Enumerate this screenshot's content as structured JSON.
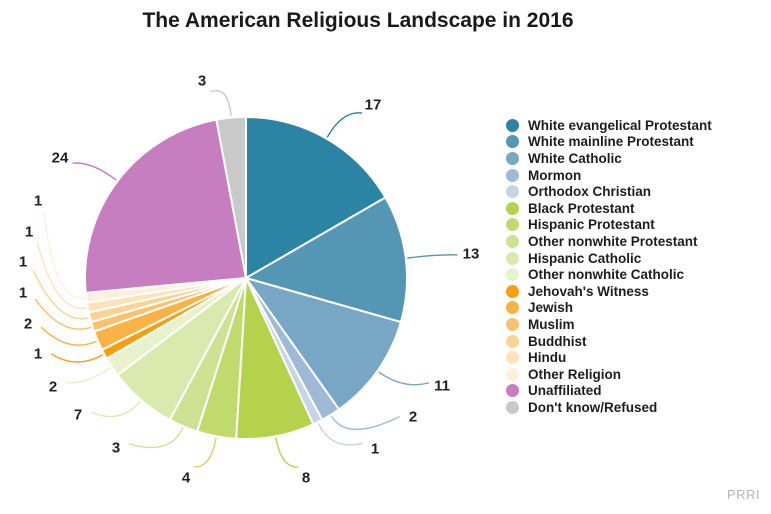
{
  "title": "The American Religious Landscape in 2016",
  "source": "PRRI",
  "chart_data": {
    "type": "pie",
    "title": "The American Religious Landscape in 2016",
    "unit": "percent",
    "total": 102,
    "legend_position": "right",
    "start_angle_deg": 0,
    "direction": "clockwise",
    "slices": [
      {
        "label": "White evangelical Protestant",
        "value": 17,
        "color": "#2b84a3"
      },
      {
        "label": "White mainline Protestant",
        "value": 13,
        "color": "#5596b5"
      },
      {
        "label": "White Catholic",
        "value": 11,
        "color": "#77a7c4"
      },
      {
        "label": "Mormon",
        "value": 2,
        "color": "#9fbad6"
      },
      {
        "label": "Orthodox Christian",
        "value": 1,
        "color": "#c4d5e5"
      },
      {
        "label": "Black Protestant",
        "value": 8,
        "color": "#b5d24d"
      },
      {
        "label": "Hispanic Protestant",
        "value": 4,
        "color": "#c1da6d"
      },
      {
        "label": "Other nonwhite Protestant",
        "value": 3,
        "color": "#cde292"
      },
      {
        "label": "Hispanic Catholic",
        "value": 7,
        "color": "#daeaae"
      },
      {
        "label": "Other nonwhite Catholic",
        "value": 2,
        "color": "#e8f2cd"
      },
      {
        "label": "Jehovah's Witness",
        "value": 1,
        "color": "#f79f11"
      },
      {
        "label": "Jewish",
        "value": 2,
        "color": "#f9b245"
      },
      {
        "label": "Muslim",
        "value": 1,
        "color": "#fac26d"
      },
      {
        "label": "Buddhist",
        "value": 1,
        "color": "#fbd392"
      },
      {
        "label": "Hindu",
        "value": 1,
        "color": "#fde3bb"
      },
      {
        "label": "Other Religion",
        "value": 1,
        "color": "#fef0da"
      },
      {
        "label": "Unaffiliated",
        "value": 24,
        "color": "#c67ec1"
      },
      {
        "label": "Don't know/Refused",
        "value": 3,
        "color": "#c9c9c9"
      }
    ]
  }
}
